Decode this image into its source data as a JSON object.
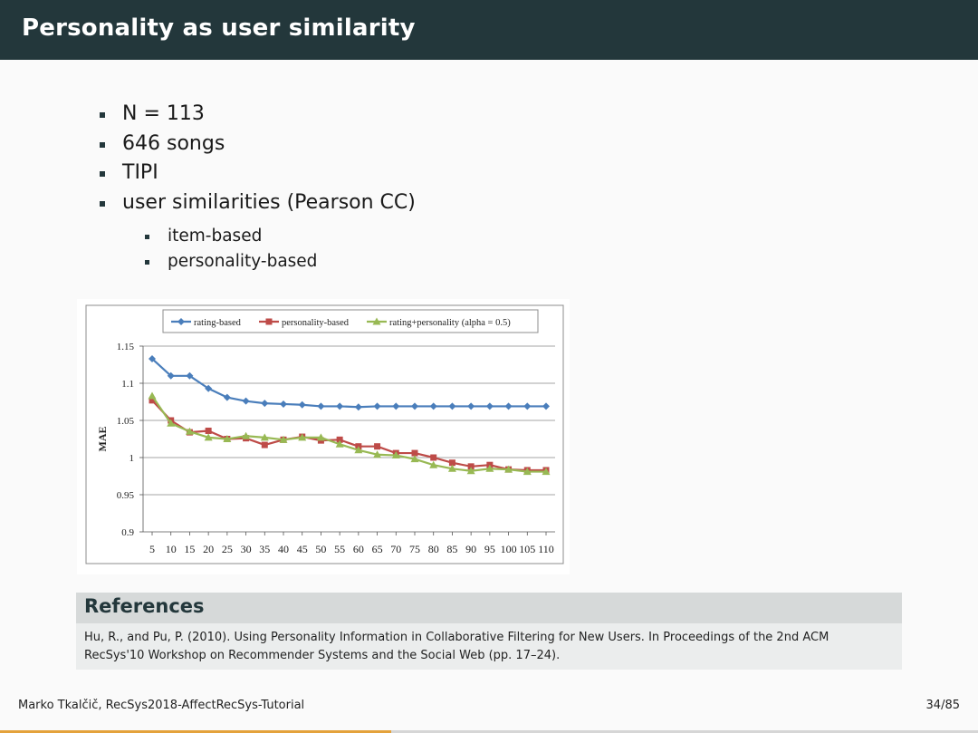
{
  "slide": {
    "title": "Personality as user similarity",
    "bullets": [
      "N = 113",
      "646 songs",
      "TIPI",
      "user similarities (Pearson CC)"
    ],
    "sub_bullets": [
      "item-based",
      "personality-based"
    ]
  },
  "chart_data": {
    "type": "line",
    "ylabel": "MAE",
    "xlabel": "",
    "x": [
      5,
      10,
      15,
      20,
      25,
      30,
      35,
      40,
      45,
      50,
      55,
      60,
      65,
      70,
      75,
      80,
      85,
      90,
      95,
      100,
      105,
      110
    ],
    "x_tick_labels": [
      "5",
      "10",
      "15",
      "20",
      "25",
      "30",
      "35",
      "40",
      "45",
      "50",
      "55",
      "60",
      "65",
      "70",
      "75",
      "80",
      "85",
      "90",
      "95",
      "100",
      "105",
      "110"
    ],
    "ylim": [
      0.9,
      1.15
    ],
    "y_ticks": [
      0.9,
      0.95,
      1,
      1.05,
      1.1,
      1.15
    ],
    "y_tick_labels": [
      "0.9",
      "0.95",
      "1",
      "1.05",
      "1.1",
      "1.15"
    ],
    "grid": "horizontal",
    "legend_position": "top",
    "series": [
      {
        "name": "rating-based",
        "color": "#4a7ebb",
        "marker": "diamond",
        "values": [
          1.133,
          1.11,
          1.11,
          1.093,
          1.081,
          1.076,
          1.073,
          1.072,
          1.071,
          1.069,
          1.069,
          1.068,
          1.069,
          1.069,
          1.069,
          1.069,
          1.069,
          1.069,
          1.069,
          1.069,
          1.069,
          1.069
        ]
      },
      {
        "name": "personality-based",
        "color": "#be4b48",
        "marker": "square",
        "values": [
          1.077,
          1.05,
          1.034,
          1.036,
          1.025,
          1.026,
          1.017,
          1.024,
          1.028,
          1.023,
          1.024,
          1.015,
          1.015,
          1.006,
          1.006,
          1.0,
          0.993,
          0.988,
          0.99,
          0.984,
          0.983,
          0.983
        ]
      },
      {
        "name": "rating+personality (alpha = 0.5)",
        "color": "#98b954",
        "marker": "triangle",
        "values": [
          1.083,
          1.046,
          1.035,
          1.027,
          1.025,
          1.029,
          1.027,
          1.024,
          1.027,
          1.027,
          1.018,
          1.01,
          1.004,
          1.003,
          0.998,
          0.99,
          0.985,
          0.982,
          0.985,
          0.984,
          0.981,
          0.981
        ]
      }
    ]
  },
  "references": {
    "heading": "References",
    "text": "Hu, R., and Pu, P. (2010). Using Personality Information in Collaborative Filtering for New Users. In Proceedings of the 2nd ACM RecSys'10 Workshop on Recommender Systems and the Social Web (pp. 17–24)."
  },
  "footer": {
    "author": "Marko Tkalčič, RecSys2018-AffectRecSys-Tutorial",
    "page": "34/85",
    "progress": 0.4
  },
  "colors": {
    "title_bar": "#23373b",
    "progress": "#e4a23b"
  }
}
